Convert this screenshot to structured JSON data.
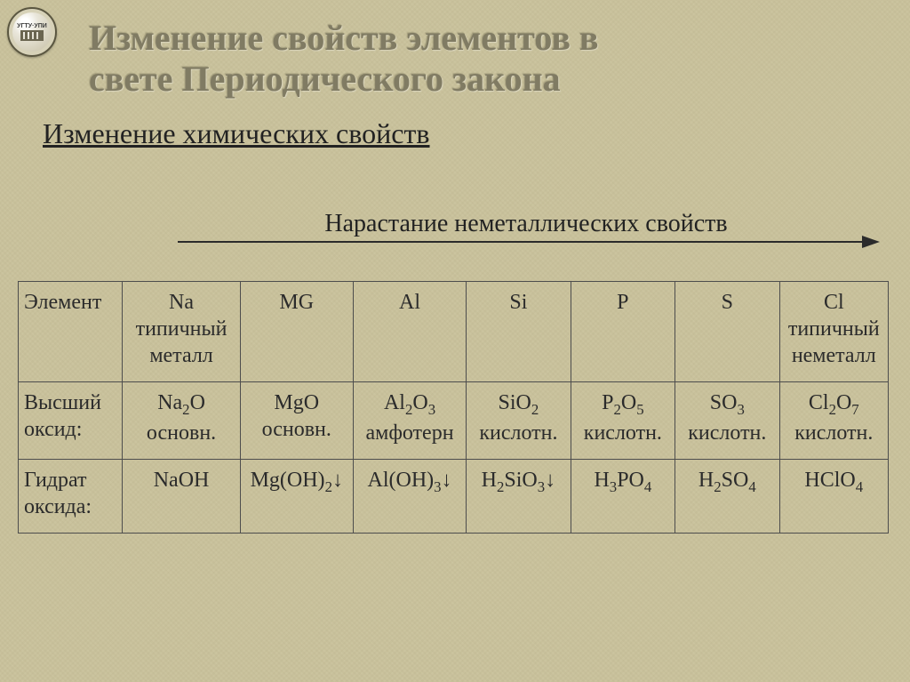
{
  "logo_text": "УГТУ·УПИ",
  "title_line1": "Изменение свойств элементов в",
  "title_line2": "свете Периодического закона",
  "subtitle": "Изменение химических свойств",
  "arrow_label": "Нарастание неметаллических свойств",
  "table": {
    "rows": [
      {
        "header": "Элемент",
        "cells": [
          "Na типичный металл",
          "MG",
          "Al",
          "Si",
          "P",
          "S",
          "Cl типичный неметалл"
        ]
      },
      {
        "header": "Высший оксид:",
        "cells_html": [
          "Na<sub>2</sub>O основн.",
          "MgO основн.",
          "Al<sub>2</sub>O<sub>3</sub> амфотерн",
          "SiO<sub>2</sub> кислотн.",
          "P<sub>2</sub>O<sub>5</sub> кислотн.",
          "SO<sub>3</sub> кислотн.",
          "Cl<sub>2</sub>O<sub>7</sub> кислотн."
        ]
      },
      {
        "header": "Гидрат оксида:",
        "cells_html": [
          "NaOH",
          "Mg(OH)<sub>2</sub><span class='down-arrow'>↓</span>",
          "Al(OH)<sub>3</sub><span class='down-arrow'>↓</span>",
          "H<sub>2</sub>SiO<sub>3</sub><span class='down-arrow'>↓</span>",
          "H<sub>3</sub>PO<sub>4</sub>",
          "H<sub>2</sub>SO<sub>4</sub>",
          "HClO<sub>4</sub>"
        ]
      }
    ],
    "col_widths_pct": [
      12,
      13.5,
      13,
      13,
      12,
      12,
      12,
      12.5
    ]
  },
  "colors": {
    "background": "#cbc49f",
    "title": "#807b63",
    "text": "#222222",
    "border": "#4d4d4d",
    "arrow": "#2b2b2b"
  }
}
